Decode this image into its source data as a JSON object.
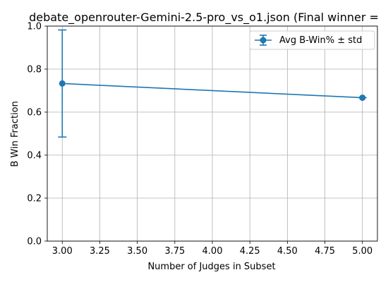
{
  "chart_data": {
    "type": "line",
    "title": "debate_openrouter-Gemini-2.5-pro_vs_o1.json (Final winner =",
    "xlabel": "Number of Judges in Subset",
    "ylabel": "B Win Fraction",
    "xlim": [
      2.9,
      5.1
    ],
    "ylim": [
      0.0,
      1.0
    ],
    "xticks": [
      3.0,
      3.25,
      3.5,
      3.75,
      4.0,
      4.25,
      4.5,
      4.75,
      5.0
    ],
    "xtick_labels": [
      "3.00",
      "3.25",
      "3.50",
      "3.75",
      "4.00",
      "4.25",
      "4.50",
      "4.75",
      "5.00"
    ],
    "yticks": [
      0.0,
      0.2,
      0.4,
      0.6,
      0.8,
      1.0
    ],
    "ytick_labels": [
      "0.0",
      "0.2",
      "0.4",
      "0.6",
      "0.8",
      "1.0"
    ],
    "grid": true,
    "legend_position": "top-right",
    "series": [
      {
        "name": "Avg B-Win% ± std",
        "color": "#1f77b4",
        "x": [
          3.0,
          5.0
        ],
        "values": [
          0.733,
          0.667
        ],
        "error": [
          0.249,
          0.0
        ]
      }
    ]
  }
}
